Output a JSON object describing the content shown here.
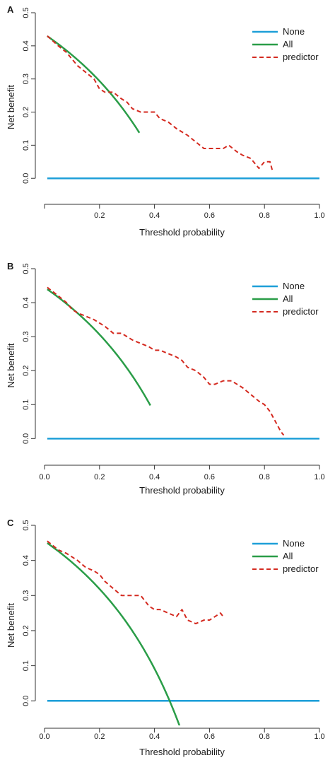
{
  "chart_data": [
    {
      "type": "line",
      "panel_label": "A",
      "xlabel": "Threshold probability",
      "ylabel": "Net benefit",
      "xlim": [
        0,
        1
      ],
      "ylim": [
        -0.07,
        0.5
      ],
      "xticks": [
        "0.2",
        "0.4",
        "0.6",
        "0.8",
        "1.0"
      ],
      "yticks": [
        "0.0",
        "0.1",
        "0.2",
        "0.3",
        "0.4",
        "0.5"
      ],
      "legend": {
        "position": "top-right",
        "entries": [
          "None",
          "All",
          "predictor"
        ]
      },
      "series": [
        {
          "name": "None",
          "color": "#1e9fd8",
          "style": "solid",
          "x": [
            0.01,
            1.0
          ],
          "y": [
            0.0,
            0.0
          ]
        },
        {
          "name": "All",
          "color": "#2a9d48",
          "style": "solid",
          "prevalence": 0.435,
          "x_max": 0.345
        },
        {
          "name": "predictor",
          "color": "#d42a20",
          "style": "dashed",
          "x": [
            0.01,
            0.05,
            0.08,
            0.1,
            0.12,
            0.15,
            0.18,
            0.2,
            0.22,
            0.25,
            0.28,
            0.3,
            0.32,
            0.35,
            0.38,
            0.4,
            0.42,
            0.45,
            0.48,
            0.5,
            0.52,
            0.55,
            0.58,
            0.6,
            0.62,
            0.65,
            0.67,
            0.7,
            0.72,
            0.75,
            0.78,
            0.8,
            0.82,
            0.83
          ],
          "y": [
            0.43,
            0.4,
            0.38,
            0.36,
            0.34,
            0.32,
            0.3,
            0.27,
            0.26,
            0.26,
            0.24,
            0.23,
            0.21,
            0.2,
            0.2,
            0.2,
            0.18,
            0.17,
            0.15,
            0.14,
            0.13,
            0.11,
            0.09,
            0.09,
            0.09,
            0.09,
            0.1,
            0.08,
            0.07,
            0.06,
            0.03,
            0.05,
            0.05,
            0.02
          ]
        }
      ]
    },
    {
      "type": "line",
      "panel_label": "B",
      "xlabel": "Threshold probability",
      "ylabel": "Net benefit",
      "xlim": [
        0,
        1
      ],
      "ylim": [
        -0.07,
        0.5
      ],
      "xticks": [
        "0.0",
        "0.2",
        "0.4",
        "0.6",
        "0.8",
        "1.0"
      ],
      "yticks": [
        "0.0",
        "0.1",
        "0.2",
        "0.3",
        "0.4",
        "0.5"
      ],
      "legend": {
        "position": "top-right",
        "entries": [
          "None",
          "All",
          "predictor"
        ]
      },
      "series": [
        {
          "name": "None",
          "color": "#1e9fd8",
          "style": "solid",
          "x": [
            0.01,
            1.0
          ],
          "y": [
            0.0,
            0.0
          ]
        },
        {
          "name": "All",
          "color": "#2a9d48",
          "style": "solid",
          "prevalence": 0.445,
          "x_max": 0.385
        },
        {
          "name": "predictor",
          "color": "#d42a20",
          "style": "dashed",
          "x": [
            0.01,
            0.05,
            0.08,
            0.1,
            0.12,
            0.15,
            0.18,
            0.2,
            0.22,
            0.25,
            0.28,
            0.3,
            0.32,
            0.35,
            0.38,
            0.4,
            0.42,
            0.45,
            0.48,
            0.5,
            0.52,
            0.55,
            0.58,
            0.6,
            0.62,
            0.65,
            0.68,
            0.7,
            0.72,
            0.75,
            0.78,
            0.8,
            0.82,
            0.84,
            0.86,
            0.87
          ],
          "y": [
            0.445,
            0.42,
            0.4,
            0.38,
            0.37,
            0.36,
            0.35,
            0.34,
            0.33,
            0.31,
            0.31,
            0.3,
            0.29,
            0.28,
            0.27,
            0.26,
            0.26,
            0.25,
            0.24,
            0.23,
            0.21,
            0.2,
            0.18,
            0.16,
            0.16,
            0.17,
            0.17,
            0.16,
            0.15,
            0.13,
            0.11,
            0.1,
            0.08,
            0.05,
            0.02,
            0.01
          ]
        }
      ]
    },
    {
      "type": "line",
      "panel_label": "C",
      "xlabel": "Threshold probability",
      "ylabel": "Net benefit",
      "xlim": [
        0,
        1
      ],
      "ylim": [
        -0.07,
        0.5
      ],
      "xticks": [
        "0.0",
        "0.2",
        "0.4",
        "0.6",
        "0.8",
        "1.0"
      ],
      "yticks": [
        "0.0",
        "0.1",
        "0.2",
        "0.3",
        "0.4",
        "0.5"
      ],
      "legend": {
        "position": "top-right",
        "entries": [
          "None",
          "All",
          "predictor"
        ]
      },
      "series": [
        {
          "name": "None",
          "color": "#1e9fd8",
          "style": "solid",
          "x": [
            0.01,
            1.0
          ],
          "y": [
            0.0,
            0.0
          ]
        },
        {
          "name": "All",
          "color": "#2a9d48",
          "style": "solid",
          "prevalence": 0.455,
          "x_max": 0.495
        },
        {
          "name": "predictor",
          "color": "#d42a20",
          "style": "dashed",
          "x": [
            0.01,
            0.05,
            0.08,
            0.1,
            0.12,
            0.15,
            0.18,
            0.2,
            0.22,
            0.25,
            0.28,
            0.3,
            0.32,
            0.35,
            0.38,
            0.4,
            0.42,
            0.45,
            0.48,
            0.5,
            0.52,
            0.55,
            0.58,
            0.6,
            0.62,
            0.64,
            0.65
          ],
          "y": [
            0.455,
            0.43,
            0.42,
            0.41,
            0.4,
            0.38,
            0.37,
            0.36,
            0.34,
            0.32,
            0.3,
            0.3,
            0.3,
            0.3,
            0.27,
            0.26,
            0.26,
            0.25,
            0.24,
            0.26,
            0.23,
            0.22,
            0.23,
            0.23,
            0.24,
            0.25,
            0.24
          ]
        }
      ]
    }
  ]
}
